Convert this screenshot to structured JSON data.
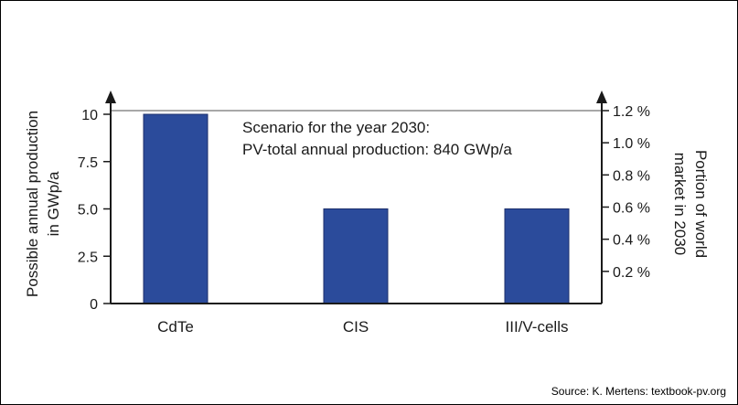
{
  "chart_data": {
    "type": "bar",
    "categories": [
      "CdTe",
      "CIS",
      "III/V-cells"
    ],
    "values": [
      10,
      5,
      5
    ],
    "ylabel_left": "Possible annual production in GWp/a",
    "ylabel_left_lines": [
      "Possible annual production",
      "in GWp/a"
    ],
    "ylim_left": [
      0,
      10
    ],
    "yticks_left": [
      "0",
      "2.5",
      "5.0",
      "7.5",
      "10"
    ],
    "ylabel_right": "Portion of world market in 2030",
    "ylabel_right_lines": [
      "Portion of world",
      "market in 2030"
    ],
    "ylim_right": [
      0,
      1.2
    ],
    "yticks_right": [
      "0.2 %",
      "0.4 %",
      "0.6 %",
      "0.8 %",
      "1.0 %",
      "1.2 %"
    ],
    "annotation_lines": [
      "Scenario for the year 2030:",
      "PV-total annual production: 840 GWp/a"
    ],
    "bar_color": "#2b4b9b",
    "grid": false
  },
  "source": "Source: K. Mertens: textbook-pv.org"
}
